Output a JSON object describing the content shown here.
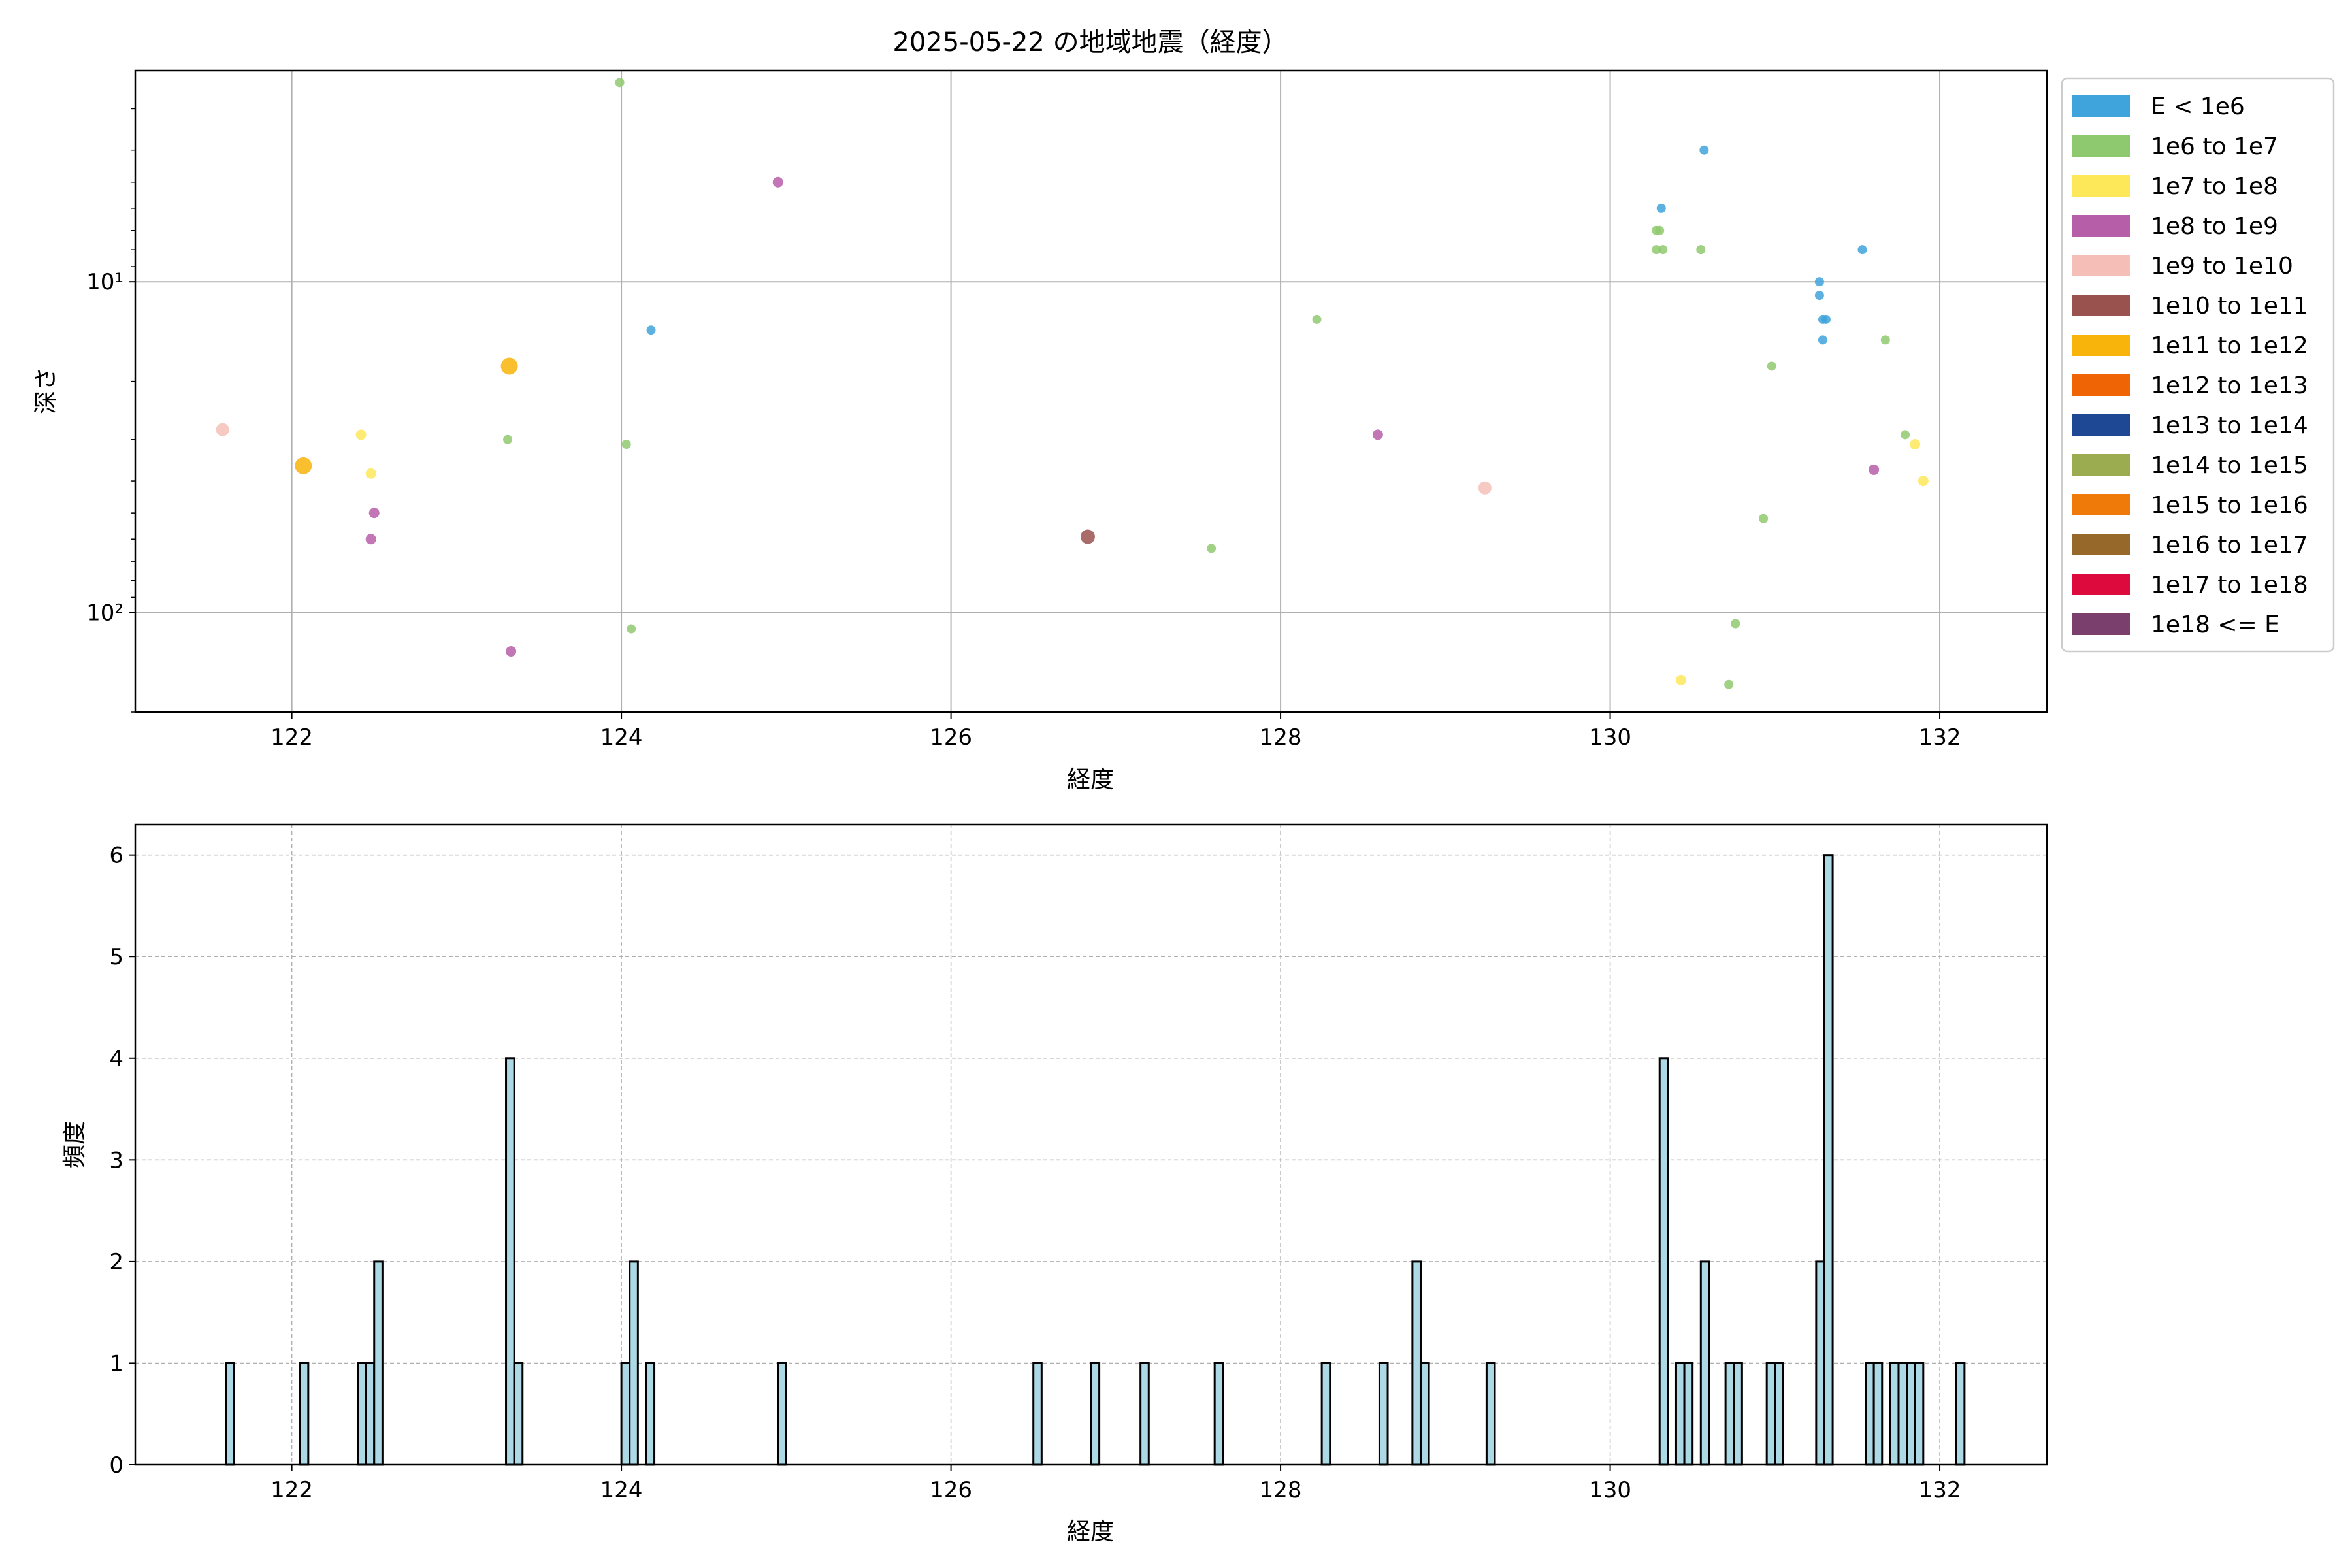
{
  "chart_data": [
    {
      "type": "scatter",
      "title": "2025-05-22 の地域地震（経度）",
      "xlabel": "経度",
      "ylabel": "深さ",
      "xlim": [
        121.05,
        132.65
      ],
      "ylim": [
        200,
        2.3
      ],
      "yscale": "log",
      "y_inverted": true,
      "grid": true,
      "x_ticks": [
        122,
        124,
        126,
        128,
        130,
        132
      ],
      "x_tick_labels": [
        "122",
        "124",
        "126",
        "128",
        "130",
        "132"
      ],
      "y_ticks": [
        10,
        100
      ],
      "y_tick_labels": [
        "10¹",
        "10²"
      ],
      "legend": {
        "placement": "outside-right-top",
        "entries": [
          {
            "label": "E < 1e6",
            "color": "#3fa3dc"
          },
          {
            "label": "1e6 to 1e7",
            "color": "#8fc96f"
          },
          {
            "label": "1e7 to 1e8",
            "color": "#fde85a"
          },
          {
            "label": "1e8 to 1e9",
            "color": "#b75ea8"
          },
          {
            "label": "1e9 to 1e10",
            "color": "#f5bfb7"
          },
          {
            "label": "1e10 to 1e11",
            "color": "#9a524e"
          },
          {
            "label": "1e11 to 1e12",
            "color": "#f8b40b"
          },
          {
            "label": "1e12 to 1e13",
            "color": "#ef6405"
          },
          {
            "label": "1e13 to 1e14",
            "color": "#1e4894"
          },
          {
            "label": "1e14 to 1e15",
            "color": "#9bab4f"
          },
          {
            "label": "1e15 to 1e16",
            "color": "#ef7a0a"
          },
          {
            "label": "1e16 to 1e17",
            "color": "#96692a"
          },
          {
            "label": "1e17 to 1e18",
            "color": "#dc0a3d"
          },
          {
            "label": "1e18 <= E",
            "color": "#7b3f6e"
          }
        ]
      },
      "series": [
        {
          "energy_class": 0,
          "x": [
            124.18,
            130.31,
            130.57,
            131.27,
            131.27,
            131.29,
            131.31,
            131.29,
            131.53
          ],
          "y": [
            14,
            6.0,
            4.0,
            10.0,
            11.0,
            13.0,
            13.0,
            15.0,
            8.0
          ]
        },
        {
          "energy_class": 1,
          "x": [
            123.31,
            123.99,
            124.03,
            124.06,
            127.58,
            128.22,
            130.28,
            130.3,
            130.32,
            130.28,
            130.55,
            130.72,
            130.76,
            130.93,
            130.98,
            131.67,
            131.79
          ],
          "y": [
            30,
            2.5,
            31,
            112,
            64,
            13,
            7.0,
            7.0,
            8.0,
            8.0,
            8.0,
            165,
            108,
            52,
            18,
            15,
            29
          ]
        },
        {
          "energy_class": 2,
          "x": [
            122.42,
            122.48,
            130.43,
            131.85,
            131.9
          ],
          "y": [
            29,
            38,
            160,
            31,
            40
          ]
        },
        {
          "energy_class": 3,
          "x": [
            122.48,
            122.5,
            123.33,
            124.95,
            128.59,
            131.6
          ],
          "y": [
            60,
            50,
            131,
            5.0,
            29,
            37
          ]
        },
        {
          "energy_class": 4,
          "x": [
            121.58,
            129.24
          ],
          "y": [
            28,
            42
          ]
        },
        {
          "energy_class": 5,
          "x": [
            126.83
          ],
          "y": [
            59
          ]
        },
        {
          "energy_class": 6,
          "x": [
            122.07,
            123.32
          ],
          "y": [
            36,
            18
          ]
        }
      ]
    },
    {
      "type": "bar",
      "title": "",
      "xlabel": "経度",
      "ylabel": "頻度",
      "xlim": [
        121.05,
        132.65
      ],
      "ylim": [
        0,
        6.3
      ],
      "grid": true,
      "bar_width": 0.05,
      "x_ticks": [
        122,
        124,
        126,
        128,
        130,
        132
      ],
      "x_tick_labels": [
        "122",
        "124",
        "126",
        "128",
        "130",
        "132"
      ],
      "y_ticks": [
        0,
        1,
        2,
        3,
        4,
        5,
        6
      ],
      "y_tick_labels": [
        "0",
        "1",
        "2",
        "3",
        "4",
        "5",
        "6"
      ],
      "bar_color": "#add8e6",
      "edge_color": "#000000",
      "x": [
        121.625,
        122.075,
        122.425,
        122.475,
        122.525,
        123.325,
        123.375,
        124.025,
        124.075,
        124.175,
        124.975,
        126.525,
        126.875,
        127.175,
        127.625,
        128.275,
        128.625,
        128.825,
        128.875,
        129.275,
        130.325,
        130.425,
        130.475,
        130.575,
        130.725,
        130.775,
        130.975,
        131.025,
        131.275,
        131.325,
        131.575,
        131.625,
        131.725,
        131.775,
        131.825,
        131.875,
        132.125
      ],
      "values": [
        1,
        1,
        1,
        1,
        2,
        4,
        1,
        1,
        2,
        1,
        1,
        1,
        1,
        1,
        1,
        1,
        1,
        2,
        1,
        1,
        4,
        1,
        1,
        2,
        1,
        1,
        1,
        1,
        2,
        6,
        1,
        1,
        1,
        1,
        1,
        1,
        1
      ]
    }
  ]
}
